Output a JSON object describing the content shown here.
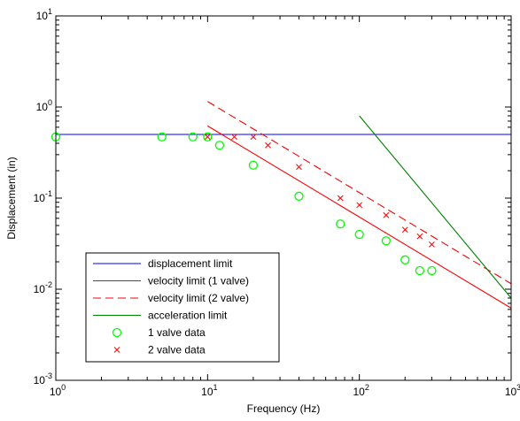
{
  "chart_data": {
    "type": "line",
    "xlabel": "Frequency (Hz)",
    "ylabel": "Displacement (in)",
    "xscale": "log",
    "yscale": "log",
    "xlim": [
      1,
      1000
    ],
    "ylim": [
      0.001,
      10
    ],
    "grid": false,
    "legend_position": "bottom-left",
    "x_ticks": [
      {
        "value": 1,
        "base": "10",
        "exp": "0"
      },
      {
        "value": 10,
        "base": "10",
        "exp": "1"
      },
      {
        "value": 100,
        "base": "10",
        "exp": "2"
      },
      {
        "value": 1000,
        "base": "10",
        "exp": "3"
      }
    ],
    "y_ticks": [
      {
        "value": 0.001,
        "base": "10",
        "exp": "-3"
      },
      {
        "value": 0.01,
        "base": "10",
        "exp": "-2"
      },
      {
        "value": 0.1,
        "base": "10",
        "exp": "-1"
      },
      {
        "value": 1,
        "base": "10",
        "exp": "0"
      },
      {
        "value": 10,
        "base": "10",
        "exp": "1"
      }
    ],
    "series": [
      {
        "name": "displacement limit",
        "kind": "line",
        "style": "solid",
        "color": "#0000ff",
        "x": [
          1,
          1000
        ],
        "y": [
          0.5,
          0.5
        ]
      },
      {
        "name": "velocity limit (1 valve)",
        "kind": "line",
        "style": "solid",
        "color": "#ff0000",
        "x": [
          10,
          1000
        ],
        "y": [
          0.62,
          0.0062
        ]
      },
      {
        "name": "velocity limit (2 valve)",
        "kind": "line",
        "style": "dashed",
        "color": "#ff0000",
        "x": [
          10,
          1000
        ],
        "y": [
          1.15,
          0.0115
        ]
      },
      {
        "name": "acceleration limit",
        "kind": "line",
        "style": "solid",
        "color": "#008000",
        "x": [
          100,
          1000
        ],
        "y": [
          0.8,
          0.008
        ]
      },
      {
        "name": "1 valve data",
        "kind": "marker",
        "marker": "circle",
        "color": "#00ff00",
        "x": [
          1,
          5,
          8,
          10,
          12,
          20,
          40,
          75,
          100,
          150,
          200,
          250,
          300
        ],
        "y": [
          0.47,
          0.47,
          0.47,
          0.47,
          0.38,
          0.23,
          0.105,
          0.052,
          0.04,
          0.034,
          0.021,
          0.016,
          0.016
        ]
      },
      {
        "name": "2 valve data",
        "kind": "marker",
        "marker": "x",
        "color": "#ff0000",
        "x": [
          10,
          15,
          20,
          25,
          40,
          75,
          100,
          150,
          200,
          250,
          300
        ],
        "y": [
          0.47,
          0.47,
          0.47,
          0.38,
          0.22,
          0.1,
          0.084,
          0.065,
          0.045,
          0.038,
          0.031
        ]
      }
    ]
  }
}
